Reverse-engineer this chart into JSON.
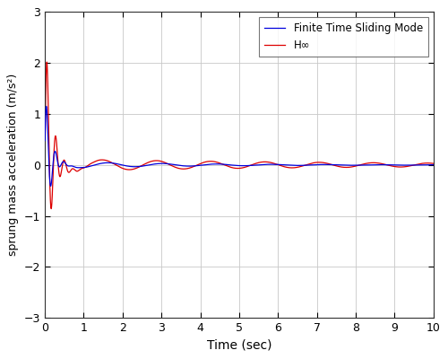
{
  "title": "",
  "xlabel": "Time (sec)",
  "ylabel": "sprung mass acceleration (m/s²)",
  "xlim": [
    0,
    10
  ],
  "ylim": [
    -3,
    3
  ],
  "xticks": [
    0,
    1,
    2,
    3,
    4,
    5,
    6,
    7,
    8,
    9,
    10
  ],
  "yticks": [
    -3,
    -2,
    -1,
    0,
    1,
    2,
    3
  ],
  "line1_color": "#0000dd",
  "line2_color": "#dd0000",
  "line1_label": "Finite Time Sliding Mode",
  "line2_label": "H∞",
  "legend_loc": "upper right",
  "grid_color": "#c8c8c8",
  "background_color": "#ffffff",
  "dt": 0.0005,
  "t_end": 10.0,
  "figsize": [
    5.0,
    4.0
  ],
  "dpi": 100
}
